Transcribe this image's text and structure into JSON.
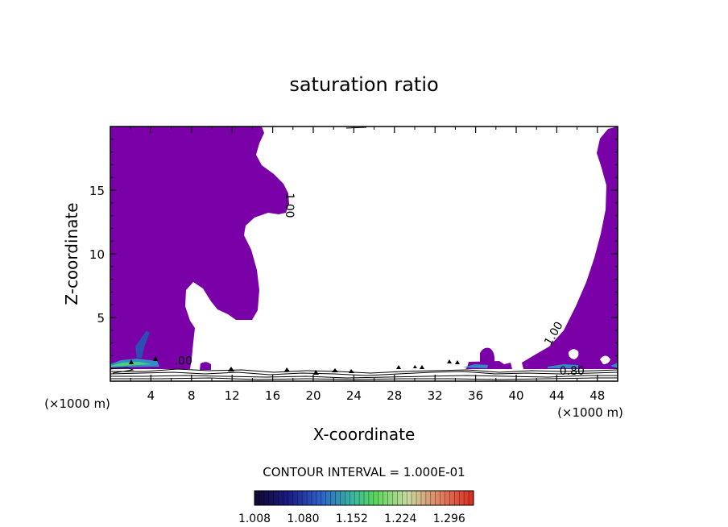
{
  "chart_data": {
    "type": "contour",
    "title": "saturation ratio",
    "xlabel": "X-coordinate",
    "ylabel": "Z-coordinate",
    "x_unit": "(×1000 m)",
    "z_unit": "(×1000 m)",
    "xlim": [
      0,
      50
    ],
    "ylim": [
      0,
      20
    ],
    "x_ticks": [
      4,
      8,
      12,
      16,
      20,
      24,
      28,
      32,
      36,
      40,
      44,
      48
    ],
    "y_ticks": [
      5,
      10,
      15
    ],
    "contour_interval_text": "CONTOUR INTERVAL = 1.000E-01",
    "contour_labels": [
      {
        "text": "1.00",
        "x": 17.3,
        "z": 13.8
      },
      {
        "text": "1.00",
        "x": 44.0,
        "z": 3.6
      },
      {
        "text": "0.80",
        "x": 45.5,
        "z": 0.5
      },
      {
        "text": ".00",
        "x": 7.2,
        "z": 1.3
      }
    ],
    "colorbar": {
      "min": 1.008,
      "max": 1.332,
      "tick_labels": [
        "1.008",
        "1.080",
        "1.152",
        "1.224",
        "1.296"
      ]
    },
    "colors": {
      "fill": "#7a00a8",
      "cmap_low": "#1a0a5a",
      "cmap_mid": "#3ac47a",
      "cmap_high": "#d92a1e"
    }
  }
}
